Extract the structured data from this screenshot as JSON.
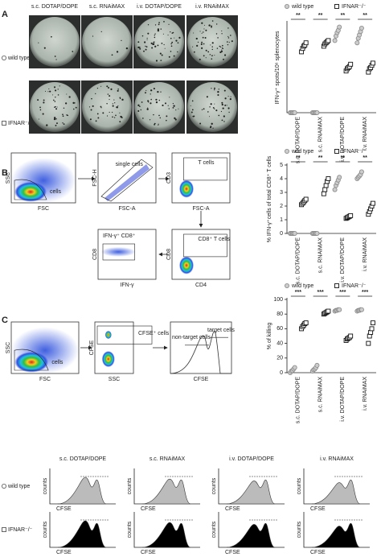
{
  "panel_labels": [
    "A",
    "B",
    "C"
  ],
  "elispot": {
    "columns": [
      "s.c. DOTAP/DOPE",
      "s.c. RNAiMAX",
      "i.v. DOTAP/DOPE",
      "i.v. RNAiMAX"
    ],
    "rows": [
      "wild type",
      "IFNAR⁻/⁻"
    ]
  },
  "flow_b": [
    {
      "y": "SSC",
      "x": "FSC",
      "gate": "cells"
    },
    {
      "y": "FSC-H",
      "x": "FSC-A",
      "gate": "single cells"
    },
    {
      "y": "CD3",
      "x": "FSC-A",
      "gate": "T cells"
    },
    {
      "y": "CD8",
      "x": "CD4",
      "gate": "CD8⁺ T cells"
    },
    {
      "y": "CD8",
      "x": "IFN-γ",
      "gate": "IFN-γ⁺ CD8⁺"
    }
  ],
  "flow_c": [
    {
      "y": "SSC",
      "x": "FSC",
      "gate": "cells"
    },
    {
      "y": "CFSE",
      "x": "SSC",
      "gate": "CFSE⁺ cells"
    },
    {
      "x": "CFSE",
      "gate": "target cells",
      "gate2": "non-target cells"
    }
  ],
  "histograms": {
    "columns": [
      "s.c. DOTAP/DOPE",
      "s.c. RNAiMAX",
      "i.v. DOTAP/DOPE",
      "i.v. RNAiMAX"
    ],
    "rows": [
      "wild type",
      "IFNAR⁻/⁻"
    ],
    "y_label": "counts",
    "x_label": "CFSE"
  },
  "chart_data": [
    {
      "type": "dot",
      "ylabel": "IFN-γ⁺ spots/10⁶ splenocytes",
      "categories": [
        "s.c. DOTAP/DOPE",
        "s.c. RNAiMAX",
        "i.v. DOTAP/DOPE",
        "i.v. RNAiMAX"
      ],
      "annotations": [
        "**",
        "**",
        "**",
        "**"
      ],
      "ylim": [
        0,
        400
      ],
      "series": [
        {
          "name": "wild type",
          "marker": "circle",
          "color": "#888888",
          "values": [
            [
              0,
              0,
              0,
              0,
              0
            ],
            [
              0,
              0,
              0,
              0,
              0
            ],
            [
              320,
              340,
              355,
              365,
              380
            ],
            [
              310,
              330,
              345,
              360,
              375
            ]
          ]
        },
        {
          "name": "IFNAR⁻/⁻",
          "marker": "square",
          "color": "#111111",
          "values": [
            [
              270,
              285,
              295,
              300,
              310
            ],
            [
              295,
              305,
              310,
              315,
              320
            ],
            [
              185,
              195,
              200,
              205,
              215
            ],
            [
              180,
              195,
              200,
              210,
              220
            ]
          ]
        }
      ]
    },
    {
      "type": "dot",
      "ylabel": "% IFN-γ⁺cells of total CD8⁺ T cells",
      "categories": [
        "s.c. DOTAP/DOPE",
        "s.c. RNAiMAX",
        "i.v. DOTAP/DOPE",
        "i.v. RNAiMAX"
      ],
      "annotations": [
        "**",
        "**",
        "**",
        "**"
      ],
      "ylim": [
        0,
        5
      ],
      "yticks": [
        0,
        1,
        2,
        3,
        4,
        5
      ],
      "series": [
        {
          "name": "wild type",
          "marker": "circle",
          "color": "#888888",
          "values": [
            [
              0,
              0,
              0,
              0,
              0
            ],
            [
              0,
              0,
              0,
              0,
              0
            ],
            [
              3.2,
              3.5,
              3.7,
              3.9,
              4.1
            ],
            [
              4.0,
              4.1,
              4.2,
              4.3,
              4.5
            ]
          ]
        },
        {
          "name": "IFNAR⁻/⁻",
          "marker": "square",
          "color": "#111111",
          "values": [
            [
              2.1,
              2.2,
              2.3,
              2.4,
              2.5
            ],
            [
              2.9,
              3.2,
              3.5,
              3.8,
              4.0
            ],
            [
              1.1,
              1.15,
              1.2,
              1.25,
              1.3
            ],
            [
              1.4,
              1.6,
              1.8,
              2.0,
              2.2
            ]
          ]
        }
      ]
    },
    {
      "type": "dot",
      "ylabel": "% of killing",
      "categories": [
        "s.c. DOTAP/DOPE",
        "s.c. RNAiMAX",
        "i.v. DOTAP/DOPE",
        "i.v. RNAiMAX"
      ],
      "annotations": [
        "***",
        "***",
        "***",
        "***"
      ],
      "ylim": [
        0,
        100
      ],
      "yticks": [
        0,
        20,
        40,
        60,
        80,
        100
      ],
      "series": [
        {
          "name": "wild type",
          "marker": "circle",
          "color": "#888888",
          "values": [
            [
              0,
              2,
              3,
              5,
              7
            ],
            [
              2,
              4,
              5,
              7,
              10
            ],
            [
              84,
              85,
              85,
              86,
              86
            ],
            [
              84,
              85,
              85,
              86,
              86
            ]
          ]
        },
        {
          "name": "IFNAR⁻/⁻",
          "marker": "square",
          "color": "#111111",
          "values": [
            [
              60,
              63,
              65,
              67,
              68
            ],
            [
              80,
              81,
              82,
              83,
              84
            ],
            [
              44,
              46,
              47,
              48,
              50
            ],
            [
              40,
              50,
              55,
              60,
              68
            ]
          ]
        }
      ]
    }
  ]
}
